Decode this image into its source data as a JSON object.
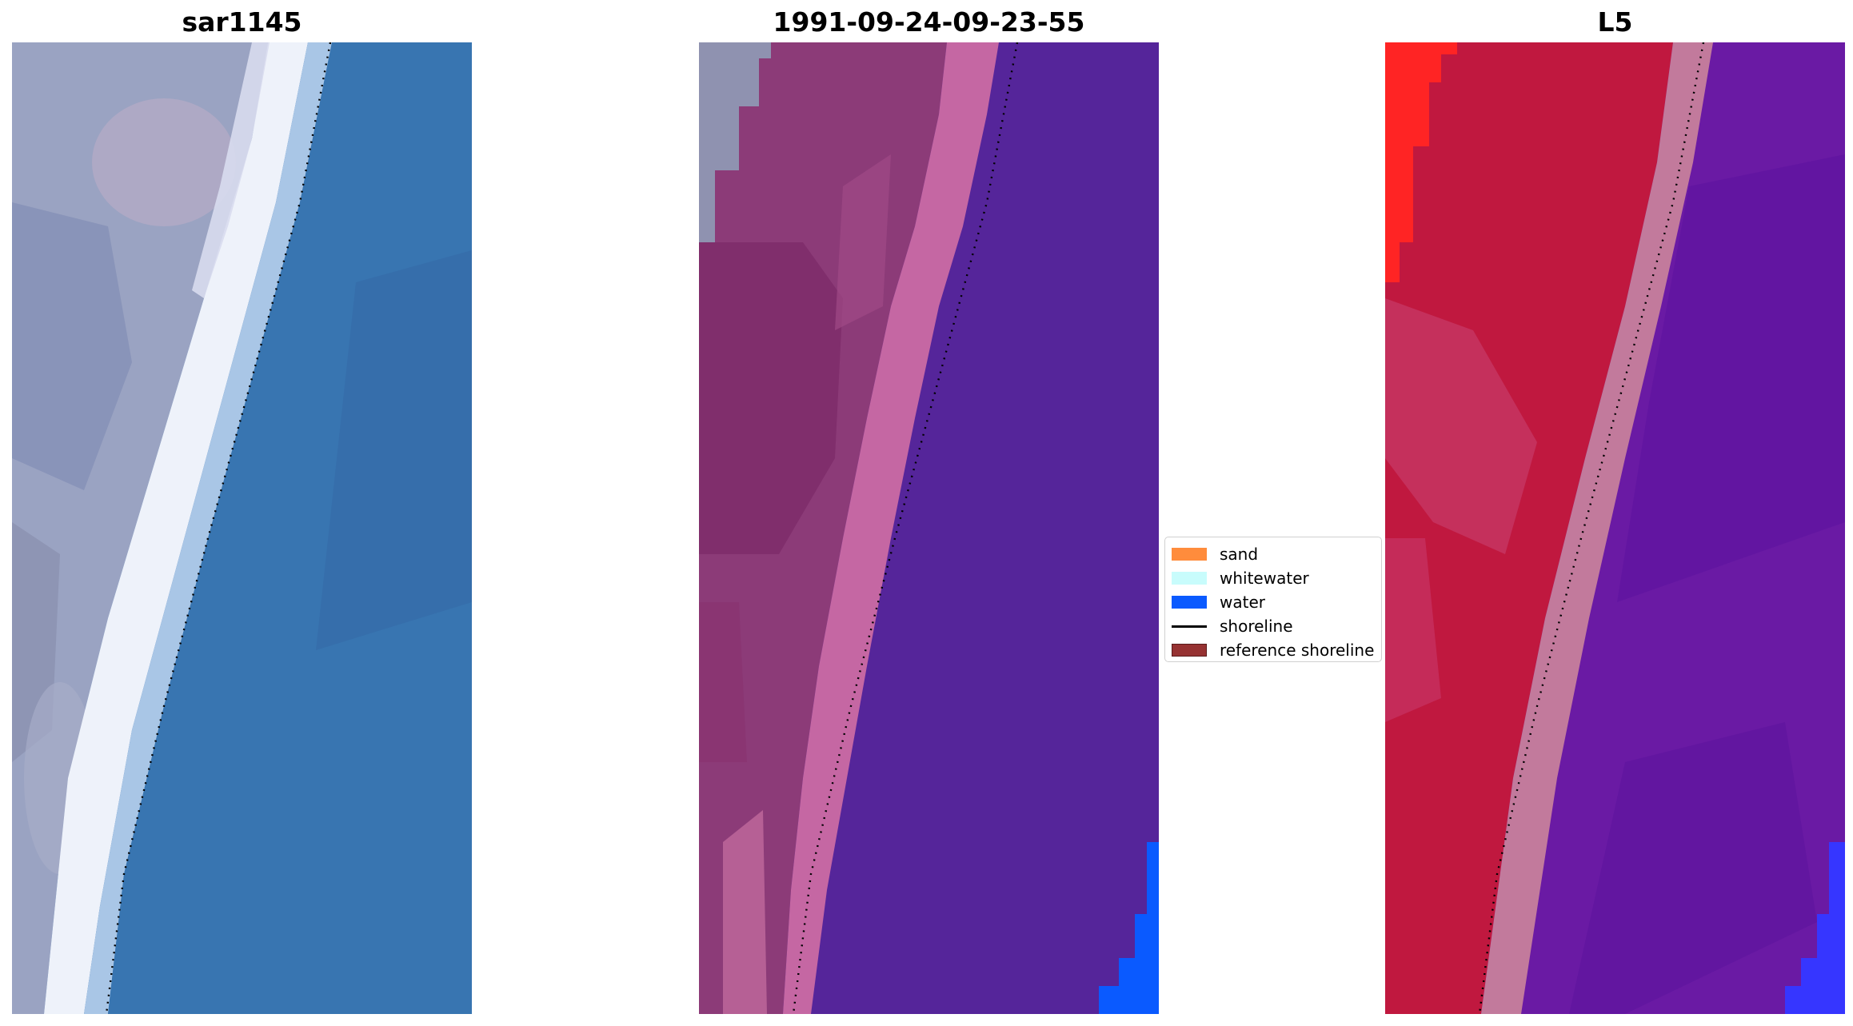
{
  "panels": [
    {
      "title": "sar1145"
    },
    {
      "title": "1991-09-24-09-23-55"
    },
    {
      "title": "L5"
    }
  ],
  "legend": {
    "items": [
      {
        "label": "sand",
        "color": "#ff8c3c",
        "kind": "patch"
      },
      {
        "label": "whitewater",
        "color": "#c8fcfc",
        "kind": "patch"
      },
      {
        "label": "water",
        "color": "#0a5aff",
        "kind": "patch"
      },
      {
        "label": "shoreline",
        "color": "#000000",
        "kind": "line"
      },
      {
        "label": "reference shoreline",
        "color": "#963232",
        "kind": "patch"
      }
    ]
  },
  "colors": {
    "rgb_land": "#9aa3c4",
    "rgb_surf": "#eef3fa",
    "rgb_water": "#3672ad",
    "class_land": "#8a3a78",
    "class_surf": "#c466a2",
    "class_water": "#55259a",
    "class_water_pixels": "#0a5aff",
    "mndwi_land": "#c01848",
    "mndwi_band": "#c87a9a",
    "mndwi_water": "#6a18a6",
    "mndwi_bright_red": "#ff2020",
    "mndwi_bright_blue": "#3838ff"
  }
}
